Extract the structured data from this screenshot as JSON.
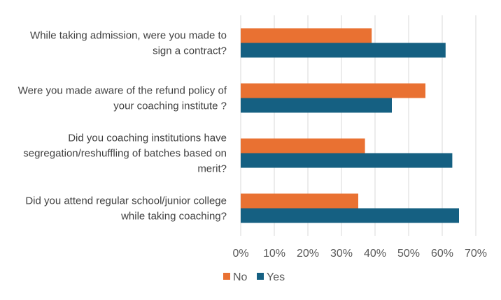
{
  "chart_data": {
    "type": "bar",
    "orientation": "horizontal",
    "title": "",
    "xlabel": "",
    "ylabel": "",
    "xlim": [
      0,
      70
    ],
    "tick_values": [
      0,
      10,
      20,
      30,
      40,
      50,
      60,
      70
    ],
    "tick_labels": [
      "0%",
      "10%",
      "20%",
      "30%",
      "40%",
      "50%",
      "60%",
      "70%"
    ],
    "grid": true,
    "legend_position": "bottom",
    "categories": [
      [
        "While taking admission, were you made to",
        "sign a contract?"
      ],
      [
        "Were you made aware of the refund policy of",
        "your coaching institute ?"
      ],
      [
        "Did you coaching institutions have",
        "segregation/reshuffling of batches based on",
        "merit?"
      ],
      [
        "Did you attend regular school/junior college",
        "while taking coaching?"
      ]
    ],
    "series": [
      {
        "name": "No",
        "color": "#E97132",
        "values": [
          39,
          55,
          37,
          35
        ]
      },
      {
        "name": "Yes",
        "color": "#156082",
        "values": [
          61,
          45,
          63,
          65
        ]
      }
    ]
  }
}
